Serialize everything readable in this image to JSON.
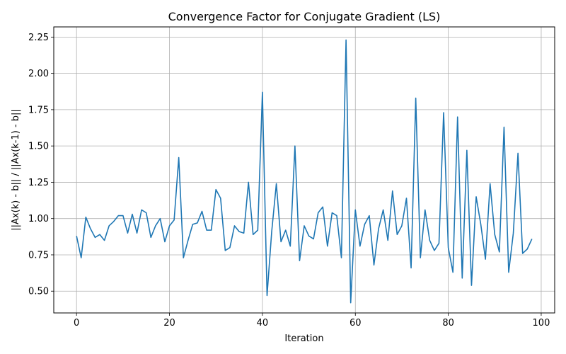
{
  "chart_data": {
    "type": "line",
    "title": "Convergence Factor for Conjugate Gradient (LS)",
    "xlabel": "Iteration",
    "ylabel": "||Ax(k) - b|| / ||Ax(k-1) - b||",
    "xlim": [
      -4.9,
      102.9
    ],
    "ylim": [
      0.35,
      2.32
    ],
    "xticks": [
      0,
      20,
      40,
      60,
      80,
      100
    ],
    "yticks": [
      0.5,
      0.75,
      1.0,
      1.25,
      1.5,
      1.75,
      2.0,
      2.25
    ],
    "xtick_labels": [
      "0",
      "20",
      "40",
      "60",
      "80",
      "100"
    ],
    "ytick_labels": [
      "0.50",
      "0.75",
      "1.00",
      "1.25",
      "1.50",
      "1.75",
      "2.00",
      "2.25"
    ],
    "grid": true,
    "line_color": "#1f77b4",
    "series": [
      {
        "values": [
          0.88,
          0.73,
          1.01,
          0.93,
          0.87,
          0.89,
          0.85,
          0.95,
          0.98,
          1.02,
          1.02,
          0.9,
          1.03,
          0.9,
          1.06,
          1.04,
          0.87,
          0.95,
          1.0,
          0.84,
          0.95,
          0.99,
          1.42,
          0.73,
          0.85,
          0.96,
          0.97,
          1.05,
          0.92,
          0.92,
          1.2,
          1.14,
          0.78,
          0.8,
          0.95,
          0.91,
          0.9,
          1.25,
          0.89,
          0.92,
          1.87,
          0.47,
          0.91,
          1.24,
          0.84,
          0.92,
          0.81,
          1.5,
          0.71,
          0.95,
          0.88,
          0.86,
          1.04,
          1.08,
          0.81,
          1.04,
          1.02,
          0.73,
          2.23,
          0.42,
          1.06,
          0.81,
          0.96,
          1.02,
          0.68,
          0.93,
          1.06,
          0.85,
          1.19,
          0.89,
          0.95,
          1.14,
          0.66,
          1.83,
          0.73,
          1.06,
          0.85,
          0.78,
          0.83,
          1.73,
          0.8,
          0.63,
          1.7,
          0.59,
          1.47,
          0.54,
          1.15,
          0.96,
          0.72,
          1.24,
          0.89,
          0.77,
          1.63,
          0.63,
          0.9,
          1.45,
          0.76,
          0.79,
          0.86
        ]
      }
    ]
  }
}
